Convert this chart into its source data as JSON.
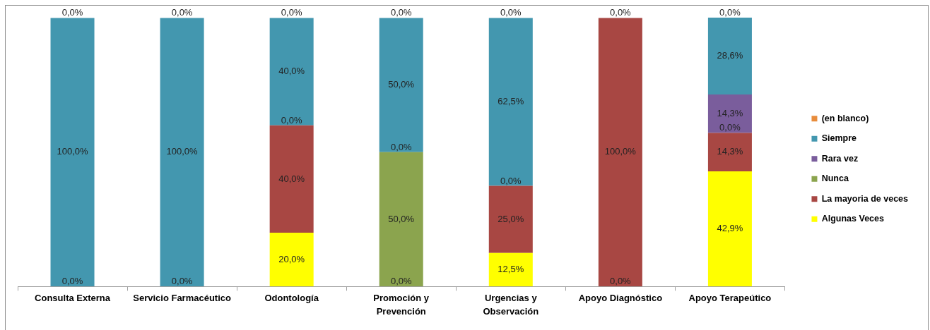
{
  "chart_data": {
    "type": "bar",
    "stacked": true,
    "legend": "right",
    "categories": [
      "Consulta Externa",
      "Servicio Farmacéutico",
      "Odontología",
      "Promoción y\nPrevención",
      "Urgencias y\nObservación",
      "Apoyo Diagnóstico",
      "Apoyo Terapeútico"
    ],
    "series": [
      {
        "name": "Algunas Veces",
        "color": "#ffff00",
        "values": [
          0,
          0,
          20,
          0,
          12.5,
          0,
          42.9
        ],
        "value_labels": [
          null,
          null,
          "20,0%",
          null,
          "12,5%",
          null,
          "42,9%"
        ]
      },
      {
        "name": "La mayoria de veces",
        "color": "#a84743",
        "values": [
          null,
          null,
          40,
          null,
          25,
          100,
          14.3
        ],
        "value_labels": [
          null,
          null,
          "40,0%",
          null,
          "25,0%",
          "100,0%",
          "14,3%"
        ]
      },
      {
        "name": "Nunca",
        "color": "#8ba44e",
        "values": [
          null,
          null,
          0,
          50,
          0,
          null,
          0
        ],
        "value_labels": [
          null,
          null,
          null,
          "50,0%",
          null,
          null,
          null
        ]
      },
      {
        "name": "Rara vez",
        "color": "#7a5d9c",
        "values": [
          null,
          null,
          null,
          0,
          null,
          null,
          14.3
        ],
        "value_labels": [
          null,
          null,
          null,
          null,
          null,
          null,
          "14,3%"
        ]
      },
      {
        "name": "Siempre",
        "color": "#4397af",
        "values": [
          100,
          100,
          40,
          50,
          62.5,
          null,
          28.6
        ],
        "value_labels": [
          "100,0%",
          "100,0%",
          "40,0%",
          "50,0%",
          "62,5%",
          null,
          "28,6%"
        ]
      },
      {
        "name": "(en blanco)",
        "color": "#e88c3c",
        "values": [
          0,
          0,
          0,
          0,
          0,
          0,
          0
        ],
        "value_labels": [
          "0,0%",
          "0,0%",
          "0,0%",
          "0,0%",
          "0,0%",
          "0,0%",
          "0,0%"
        ]
      }
    ],
    "annotations": [
      {
        "text": "0,0%",
        "x": "Consulta Externa",
        "y": 0
      },
      {
        "text": "0,0%",
        "x": "Servicio Farmacéutico",
        "y": 0
      },
      {
        "text": "0,0%",
        "x": "Odontología",
        "y": 60
      },
      {
        "text": "0,0%",
        "x": "Promoción y\nPrevención",
        "y": 0
      },
      {
        "text": "0,0%",
        "x": "Promoción y\nPrevención",
        "y": 50
      },
      {
        "text": "0,0%",
        "x": "Urgencias y\nObservación",
        "y": 37.5
      },
      {
        "text": "0,0%",
        "x": "Apoyo Diagnóstico",
        "y": 0
      },
      {
        "text": "0,0%",
        "x": "Apoyo Terapeútico",
        "y": 57.2
      }
    ]
  }
}
